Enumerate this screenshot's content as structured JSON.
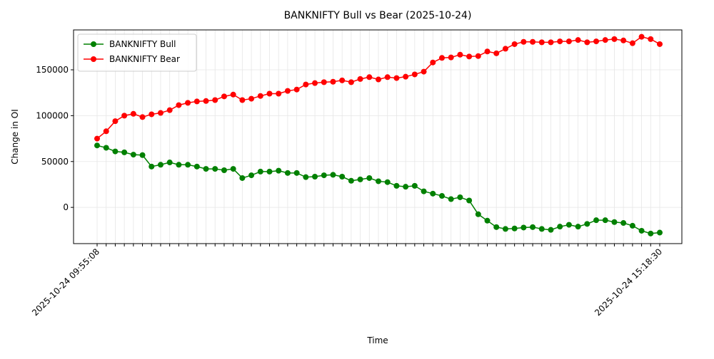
{
  "chart_data": {
    "type": "line",
    "title": "BANKNIFTY Bull vs Bear (2025-10-24)",
    "xlabel": "Time",
    "ylabel": "Change in OI",
    "categories": [
      "2025-10-24 09:55:08",
      null,
      null,
      null,
      null,
      null,
      null,
      null,
      null,
      null,
      null,
      null,
      null,
      null,
      null,
      null,
      null,
      null,
      null,
      null,
      null,
      null,
      null,
      null,
      null,
      null,
      null,
      null,
      null,
      null,
      null,
      null,
      null,
      null,
      null,
      null,
      null,
      null,
      null,
      null,
      null,
      null,
      null,
      null,
      null,
      null,
      null,
      null,
      null,
      null,
      null,
      null,
      null,
      null,
      null,
      null,
      null,
      null,
      null,
      null,
      null,
      null,
      "2025-10-24 15:18:30"
    ],
    "series": [
      {
        "name": "BANKNIFTY Bull",
        "color": "#008000",
        "values": [
          67500,
          65000,
          61000,
          60000,
          57500,
          57000,
          44500,
          46500,
          49000,
          46500,
          46500,
          44500,
          42000,
          42000,
          40500,
          42000,
          32000,
          35000,
          39000,
          39000,
          40000,
          37500,
          37500,
          33000,
          33500,
          35000,
          35500,
          33500,
          29000,
          30500,
          32000,
          28500,
          27500,
          23500,
          22500,
          23500,
          17500,
          15000,
          12500,
          9000,
          11000,
          7500,
          -7500,
          -14500,
          -21500,
          -23500,
          -23000,
          -22000,
          -21500,
          -23500,
          -24500,
          -21000,
          -19000,
          -21000,
          -18000,
          -14000,
          -14000,
          -16000,
          -17000,
          -20000,
          -25500,
          -28500,
          -27500
        ]
      },
      {
        "name": "BANKNIFTY Bear",
        "color": "#ff0000",
        "values": [
          75000,
          83000,
          94000,
          100000,
          102000,
          98500,
          101500,
          103000,
          106000,
          111500,
          114000,
          115500,
          116000,
          117000,
          121000,
          123000,
          117000,
          118500,
          121500,
          124000,
          124000,
          127000,
          128500,
          134000,
          135500,
          136500,
          137000,
          138500,
          136500,
          140000,
          142000,
          139500,
          142000,
          141000,
          142500,
          145000,
          148000,
          158000,
          163000,
          163500,
          166500,
          164500,
          165000,
          170000,
          168000,
          173000,
          178000,
          180500,
          180500,
          180000,
          180000,
          181000,
          181000,
          182500,
          180000,
          181000,
          182500,
          183500,
          182000,
          179000,
          186000,
          183500,
          178000
        ]
      }
    ],
    "ylim": [
      -39500,
      193500
    ],
    "yticks": [
      0,
      50000,
      100000,
      150000
    ],
    "grid": true,
    "legend": "upper left"
  }
}
